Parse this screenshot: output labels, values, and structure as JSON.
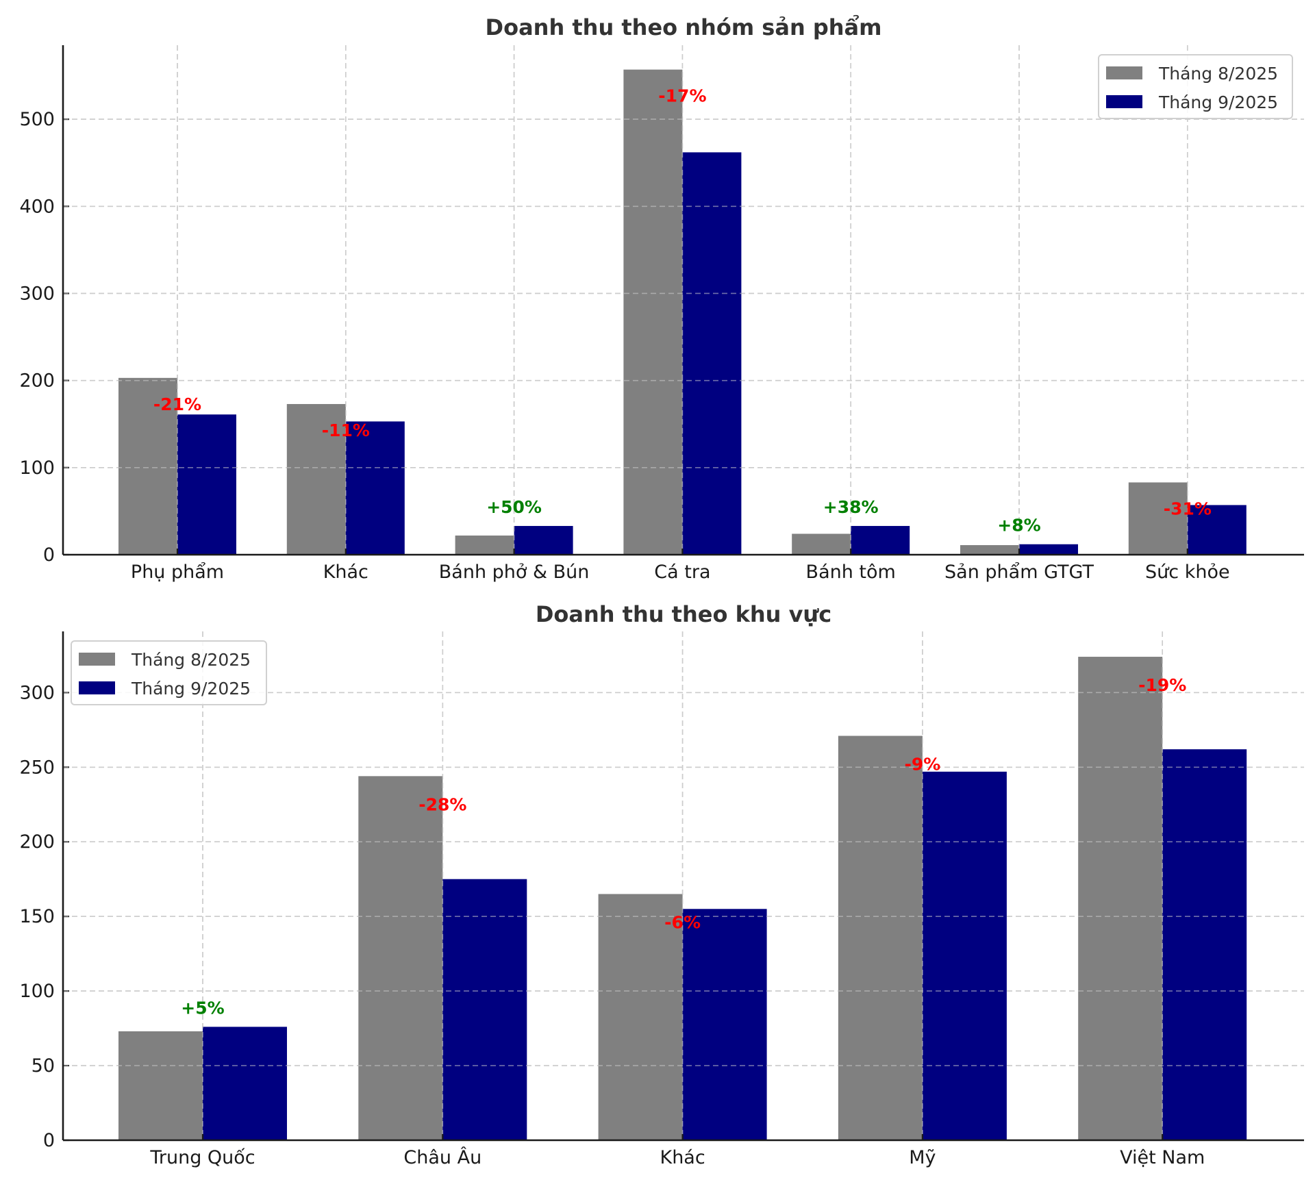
{
  "chart_data": [
    {
      "type": "bar",
      "title": "Doanh thu theo nhóm sản phẩm",
      "xlabel": "",
      "ylabel": "",
      "categories": [
        "Phụ phẩm",
        "Khác",
        "Bánh phở & Bún",
        "Cá tra",
        "Bánh tôm",
        "Sản phẩm GTGT",
        "Sức khỏe"
      ],
      "series": [
        {
          "name": "Tháng 8/2025",
          "color": "#808080",
          "values": [
            203,
            173,
            22,
            557,
            24,
            11,
            83
          ]
        },
        {
          "name": "Tháng 9/2025",
          "color": "#000080",
          "values": [
            161,
            153,
            33,
            462,
            33,
            12,
            57
          ]
        }
      ],
      "annotations": [
        "-21%",
        "-11%",
        "+50%",
        "-17%",
        "+38%",
        "+8%",
        "-31%"
      ],
      "yticks": [
        0,
        100,
        200,
        300,
        400,
        500
      ],
      "ylim": [
        0,
        585
      ],
      "grid": true,
      "legend_position": "top-right"
    },
    {
      "type": "bar",
      "title": "Doanh thu theo khu vực",
      "xlabel": "",
      "ylabel": "",
      "categories": [
        "Trung Quốc",
        "Châu Âu",
        "Khác",
        "Mỹ",
        "Việt Nam"
      ],
      "series": [
        {
          "name": "Tháng 8/2025",
          "color": "#808080",
          "values": [
            73,
            244,
            165,
            271,
            324
          ]
        },
        {
          "name": "Tháng 9/2025",
          "color": "#000080",
          "values": [
            76,
            175,
            155,
            247,
            262
          ]
        }
      ],
      "annotations": [
        "+5%",
        "-28%",
        "-6%",
        "-9%",
        "-19%"
      ],
      "yticks": [
        0,
        50,
        100,
        150,
        200,
        250,
        300
      ],
      "ylim": [
        0,
        341
      ],
      "grid": true,
      "legend_position": "top-left"
    }
  ],
  "colors": {
    "increase": "#008000",
    "decrease": "#ff0000"
  }
}
